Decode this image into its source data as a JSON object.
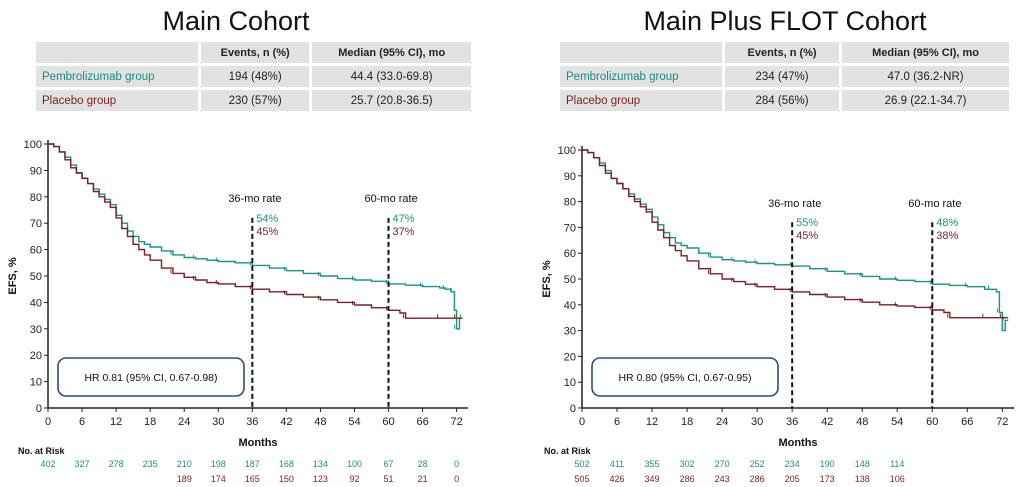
{
  "colors": {
    "pembrolizumab": "#1a9285",
    "placebo": "#7a1f22",
    "axis": "#222222",
    "hr_box_border": "#2f4d7a"
  },
  "panels": [
    {
      "title": "Main Cohort",
      "table": {
        "headers": [
          "",
          "Events, n (%)",
          "Median (95% CI), mo"
        ],
        "rows": [
          {
            "group": "Pembrolizumab group",
            "events": "194 (48%)",
            "median": "44.4 (33.0-69.8)"
          },
          {
            "group": "Placebo group",
            "events": "230 (57%)",
            "median": "25.7 (20.8-36.5)"
          }
        ]
      },
      "hr_text": "HR 0.81 (95% CI, 0.67-0.98)",
      "rate36": {
        "label": "36-mo rate",
        "pem": "54%",
        "pla": "45%"
      },
      "rate60": {
        "label": "60-mo rate",
        "pem": "47%",
        "pla": "37%"
      },
      "at_risk": {
        "label": "No. at Risk",
        "pem": [
          "402",
          "327",
          "278",
          "235",
          "210",
          "198",
          "187",
          "168",
          "134",
          "100",
          "67",
          "28",
          "0"
        ],
        "pla": [
          "",
          "",
          "",
          "",
          "189",
          "174",
          "165",
          "150",
          "123",
          "92",
          "51",
          "21",
          "0"
        ]
      }
    },
    {
      "title": "Main Plus FLOT Cohort",
      "table": {
        "headers": [
          "",
          "Events, n (%)",
          "Median (95% CI), mo"
        ],
        "rows": [
          {
            "group": "Pembrolizumab group",
            "events": "234 (47%)",
            "median": "47.0 (36.2-NR)"
          },
          {
            "group": "Placebo group",
            "events": "284 (56%)",
            "median": "26.9 (22.1-34.7)"
          }
        ]
      },
      "hr_text": "HR 0.80 (95% CI, 0.67-0.95)",
      "rate36": {
        "label": "36-mo rate",
        "pem": "55%",
        "pla": "45%"
      },
      "rate60": {
        "label": "60-mo rate",
        "pem": "48%",
        "pla": "38%"
      },
      "at_risk": {
        "label": "No. at Risk",
        "pem": [
          "502",
          "411",
          "355",
          "302",
          "270",
          "252",
          "234",
          "190",
          "148",
          "114",
          "",
          "",
          ""
        ],
        "pla": [
          "505",
          "426",
          "349",
          "286",
          "243",
          "286",
          "205",
          "173",
          "138",
          "106",
          "",
          "",
          ""
        ]
      }
    }
  ],
  "chart_data": [
    {
      "type": "line",
      "title": "Main Cohort",
      "xlabel": "Months",
      "ylabel": "EFS, %",
      "xlim": [
        0,
        74
      ],
      "ylim": [
        0,
        100
      ],
      "xticks": [
        0,
        6,
        12,
        18,
        24,
        30,
        36,
        42,
        48,
        54,
        60,
        66,
        72
      ],
      "yticks": [
        0,
        10,
        20,
        30,
        40,
        50,
        60,
        70,
        80,
        90,
        100
      ],
      "series": [
        {
          "name": "Pembrolizumab group",
          "x": [
            0,
            1,
            2,
            3,
            4,
            5,
            6,
            7,
            8,
            9,
            10,
            11,
            12,
            13,
            14,
            15,
            16,
            17,
            18,
            20,
            22,
            24,
            26,
            28,
            30,
            33,
            36,
            39,
            42,
            45,
            48,
            51,
            54,
            57,
            60,
            63,
            66,
            69,
            70,
            71,
            71.3,
            71.6,
            72,
            72.5,
            73
          ],
          "y": [
            100,
            99,
            97,
            95,
            92,
            89,
            87,
            85,
            83,
            81,
            79,
            77,
            73,
            70,
            67,
            65,
            63,
            62,
            61,
            59.5,
            58,
            57,
            56.5,
            56,
            55.5,
            55,
            54,
            53,
            52,
            51,
            50,
            49,
            48.5,
            48,
            47,
            46.5,
            46,
            45.5,
            45,
            44,
            44,
            37,
            30,
            34,
            34
          ]
        },
        {
          "name": "Placebo group",
          "x": [
            0,
            1,
            2,
            3,
            4,
            5,
            6,
            7,
            8,
            9,
            10,
            11,
            12,
            13,
            14,
            15,
            16,
            17,
            18,
            20,
            22,
            24,
            26,
            28,
            30,
            33,
            36,
            39,
            42,
            45,
            48,
            51,
            54,
            57,
            60,
            62,
            63,
            66,
            69,
            71,
            72,
            73
          ],
          "y": [
            100,
            99,
            97,
            94,
            91,
            89,
            87,
            85,
            82,
            80,
            78,
            76,
            72,
            68,
            65,
            62,
            60,
            58,
            56,
            53,
            51,
            49.5,
            48.5,
            47.5,
            47,
            46,
            45,
            44,
            43,
            42,
            41,
            40,
            39,
            38,
            37,
            36,
            34,
            34,
            34,
            34,
            34,
            34
          ]
        }
      ]
    },
    {
      "type": "line",
      "title": "Main Plus FLOT Cohort",
      "xlabel": "Months",
      "ylabel": "EFS, %",
      "xlim": [
        0,
        74
      ],
      "ylim": [
        0,
        100
      ],
      "xticks": [
        0,
        6,
        12,
        18,
        24,
        30,
        36,
        42,
        48,
        54,
        60,
        66,
        72
      ],
      "yticks": [
        0,
        10,
        20,
        30,
        40,
        50,
        60,
        70,
        80,
        90,
        100
      ],
      "series": [
        {
          "name": "Pembrolizumab group",
          "x": [
            0,
            1,
            2,
            3,
            4,
            5,
            6,
            7,
            8,
            9,
            10,
            11,
            12,
            13,
            14,
            15,
            16,
            17,
            18,
            20,
            22,
            24,
            26,
            28,
            30,
            33,
            36,
            39,
            42,
            45,
            48,
            51,
            54,
            57,
            60,
            63,
            66,
            69,
            70,
            71,
            71.5,
            72,
            72.5,
            73
          ],
          "y": [
            100,
            99,
            97,
            95,
            92,
            89,
            87,
            85,
            83,
            81,
            79,
            77,
            74,
            71,
            68,
            66,
            64,
            63,
            62,
            60,
            58.5,
            57.5,
            57,
            56.5,
            56,
            55.5,
            55,
            54,
            53,
            52,
            51,
            50,
            49.5,
            49,
            48,
            47.5,
            47,
            46,
            46,
            45,
            37,
            30,
            34,
            34
          ]
        },
        {
          "name": "Placebo group",
          "x": [
            0,
            1,
            2,
            3,
            4,
            5,
            6,
            7,
            8,
            9,
            10,
            11,
            12,
            13,
            14,
            15,
            16,
            17,
            18,
            20,
            22,
            24,
            26,
            28,
            30,
            33,
            36,
            39,
            42,
            45,
            48,
            51,
            54,
            57,
            60,
            62,
            63,
            66,
            69,
            71,
            72,
            73
          ],
          "y": [
            100,
            99,
            97,
            94,
            91,
            89,
            87,
            85,
            82,
            80,
            78,
            76,
            72,
            69,
            66,
            63,
            61,
            59,
            57,
            54,
            52,
            50,
            49,
            48,
            47,
            46,
            45,
            44,
            43,
            42,
            41,
            40,
            39.5,
            39,
            38,
            37,
            35,
            35,
            35,
            35,
            35,
            35
          ]
        }
      ]
    }
  ]
}
